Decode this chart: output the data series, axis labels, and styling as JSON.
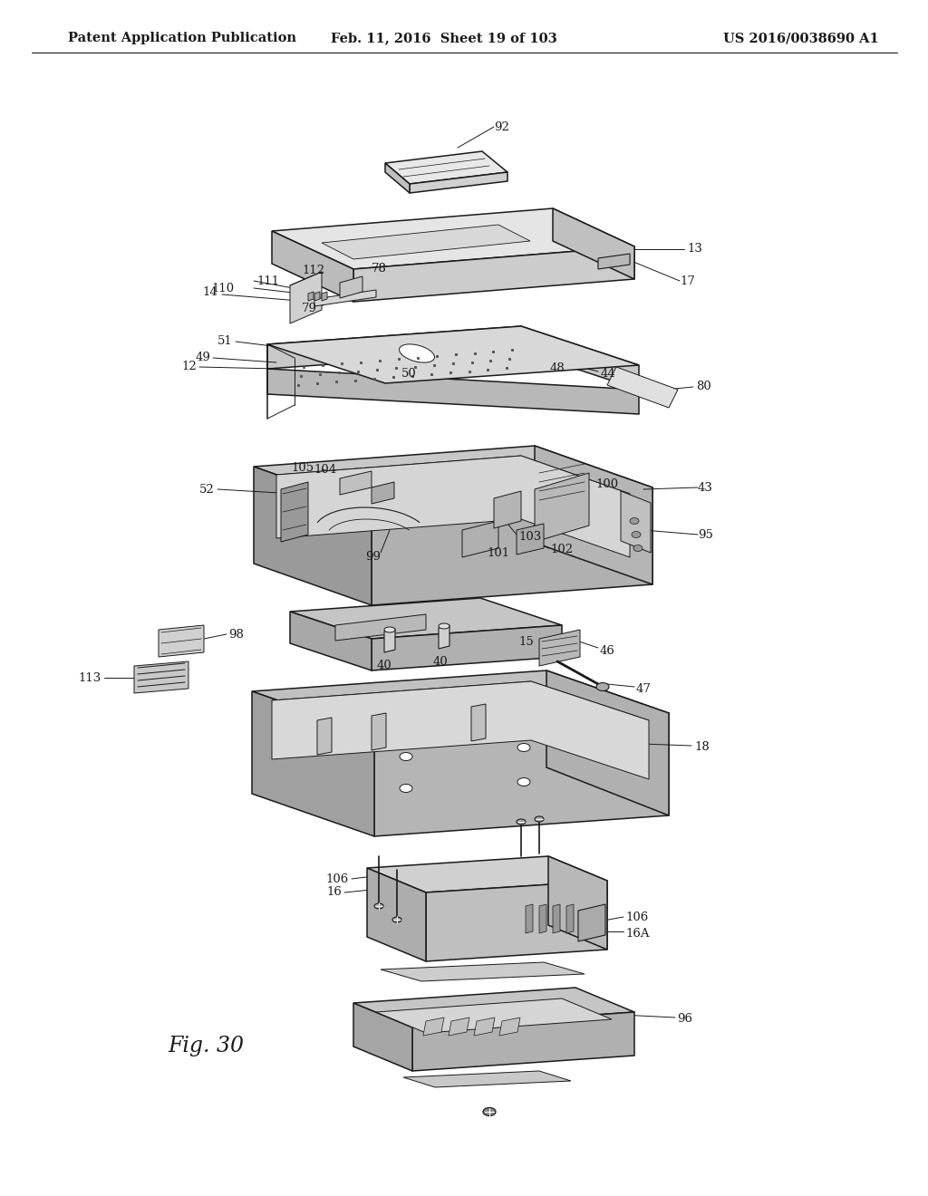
{
  "title_left": "Patent Application Publication",
  "title_mid": "Feb. 11, 2016  Sheet 19 of 103",
  "title_right": "US 2016/0038690 A1",
  "fig_label": "Fig. 30",
  "background_color": "#ffffff",
  "line_color": "#1a1a1a",
  "title_fontsize": 10.5,
  "fig_label_fontsize": 17,
  "annotation_fontsize": 9.5
}
